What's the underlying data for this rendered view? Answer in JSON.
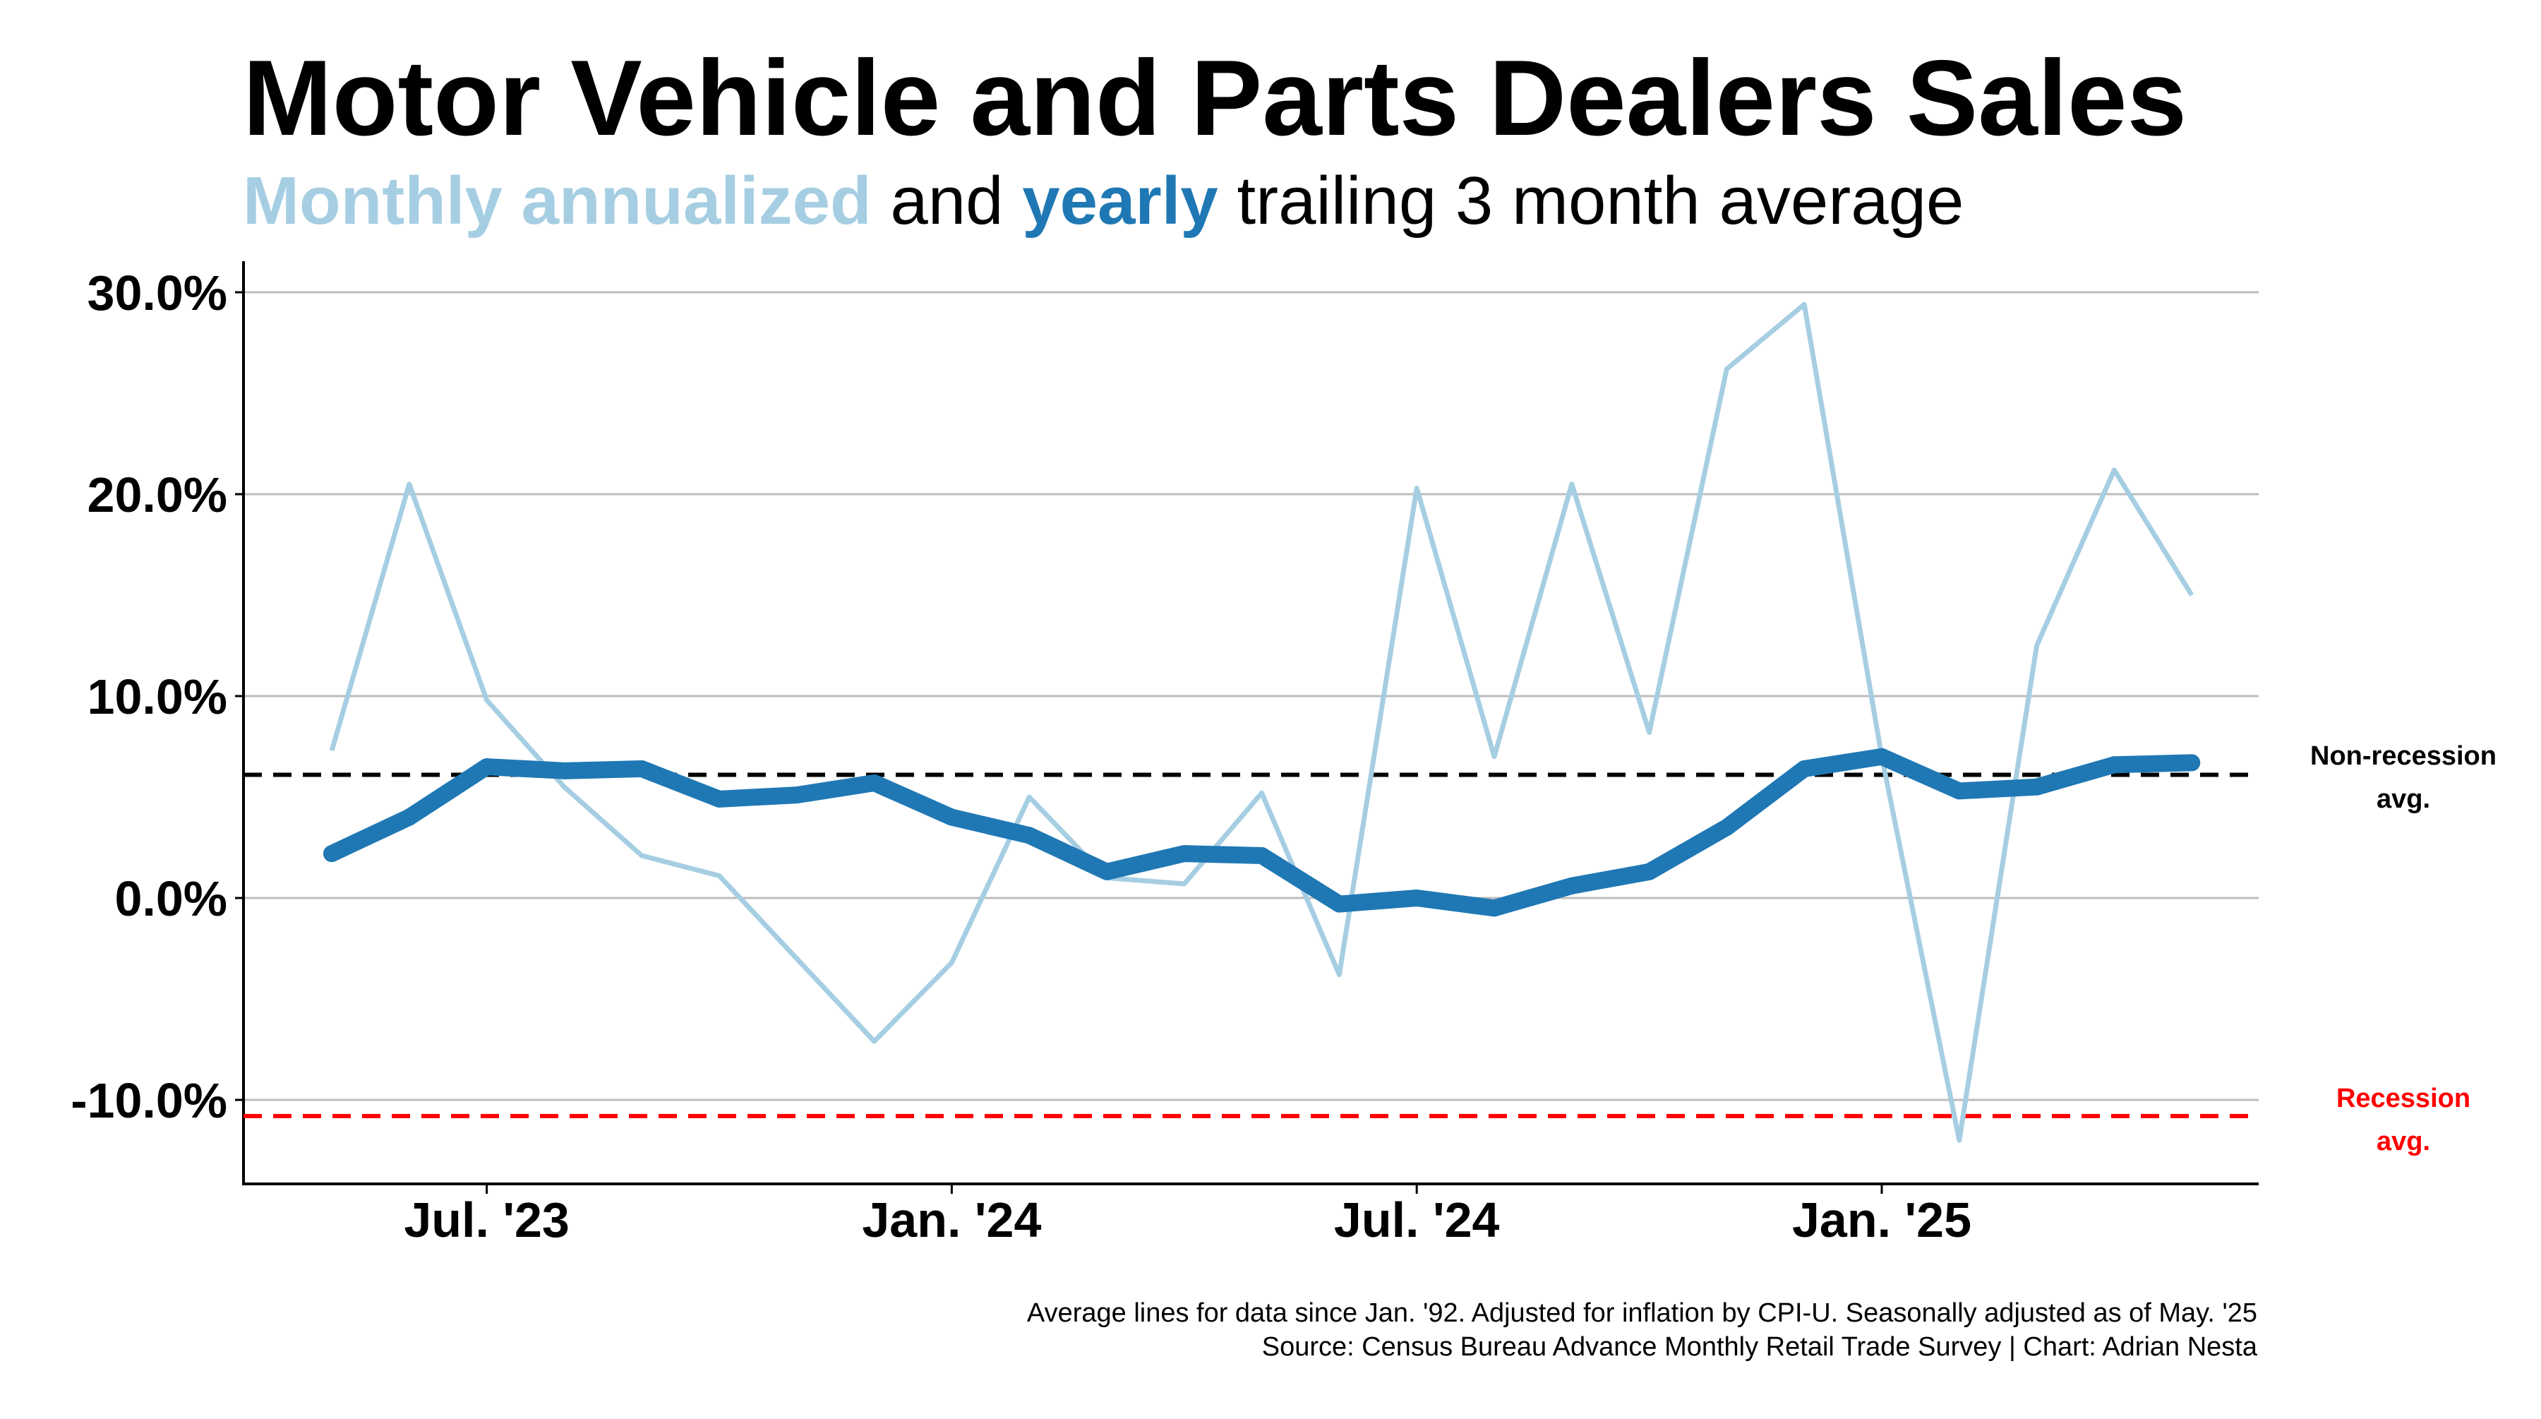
{
  "title": "Motor Vehicle and Parts Dealers Sales",
  "subtitle": {
    "part1": "Monthly annualized",
    "part2": " and ",
    "part3": "yearly",
    "part4": " trailing 3 month average"
  },
  "footnote": {
    "line1": "Average lines for data since Jan. '92. Adjusted for inflation by CPI-U. Seasonally adjusted as of May. '25",
    "line2": "Source: Census Bureau Advance Monthly Retail Trade Survey | Chart: Adrian Nesta"
  },
  "colors": {
    "monthly": "#a6cee3",
    "yearly": "#1f78b4",
    "non_recession": "#000000",
    "recession": "#ff0000",
    "grid": "#bdbdbd"
  },
  "chart_data": {
    "type": "line",
    "x": [
      "2023-05",
      "2023-06",
      "2023-07",
      "2023-08",
      "2023-09",
      "2023-10",
      "2023-11",
      "2023-12",
      "2024-01",
      "2024-02",
      "2024-03",
      "2024-04",
      "2024-05",
      "2024-06",
      "2024-07",
      "2024-08",
      "2024-09",
      "2024-10",
      "2024-11",
      "2024-12",
      "2025-01",
      "2025-02",
      "2025-03",
      "2025-04",
      "2025-05"
    ],
    "x_tick_labels": [
      "Jul. '23",
      "Jan. '24",
      "Jul. '24",
      "Jan. '25"
    ],
    "x_tick_values": [
      "2023-07",
      "2024-01",
      "2024-07",
      "2025-01"
    ],
    "y_tick_labels": [
      "30.0%",
      "20.0%",
      "10.0%",
      "0.0%",
      "-10.0%"
    ],
    "y_tick_values": [
      30,
      20,
      10,
      0,
      -10
    ],
    "ylim": [
      -14.2,
      31.5
    ],
    "series": [
      {
        "name": "Monthly annualized",
        "values": [
          7.3,
          20.5,
          9.8,
          5.5,
          2.1,
          1.1,
          -3.0,
          -7.1,
          -3.2,
          5.0,
          1.0,
          0.7,
          5.2,
          -3.8,
          20.3,
          7.0,
          20.5,
          8.2,
          26.2,
          29.4,
          7.0,
          -12.0,
          12.5,
          21.2,
          15.0
        ]
      },
      {
        "name": "yearly",
        "values": [
          2.2,
          4.0,
          6.5,
          6.3,
          6.4,
          4.9,
          5.1,
          5.7,
          4.0,
          3.1,
          1.3,
          2.2,
          2.1,
          -0.3,
          0.0,
          -0.5,
          0.6,
          1.3,
          3.5,
          6.4,
          7.0,
          5.3,
          5.5,
          6.6,
          6.7
        ]
      }
    ],
    "reference_lines": [
      {
        "label_line1": "Non-recession",
        "label_line2": "avg.",
        "value": 6.1
      },
      {
        "label_line1": "Recession",
        "label_line2": "avg.",
        "value": -10.8
      }
    ],
    "grid": "horizontal",
    "legend": "in subtitle"
  }
}
